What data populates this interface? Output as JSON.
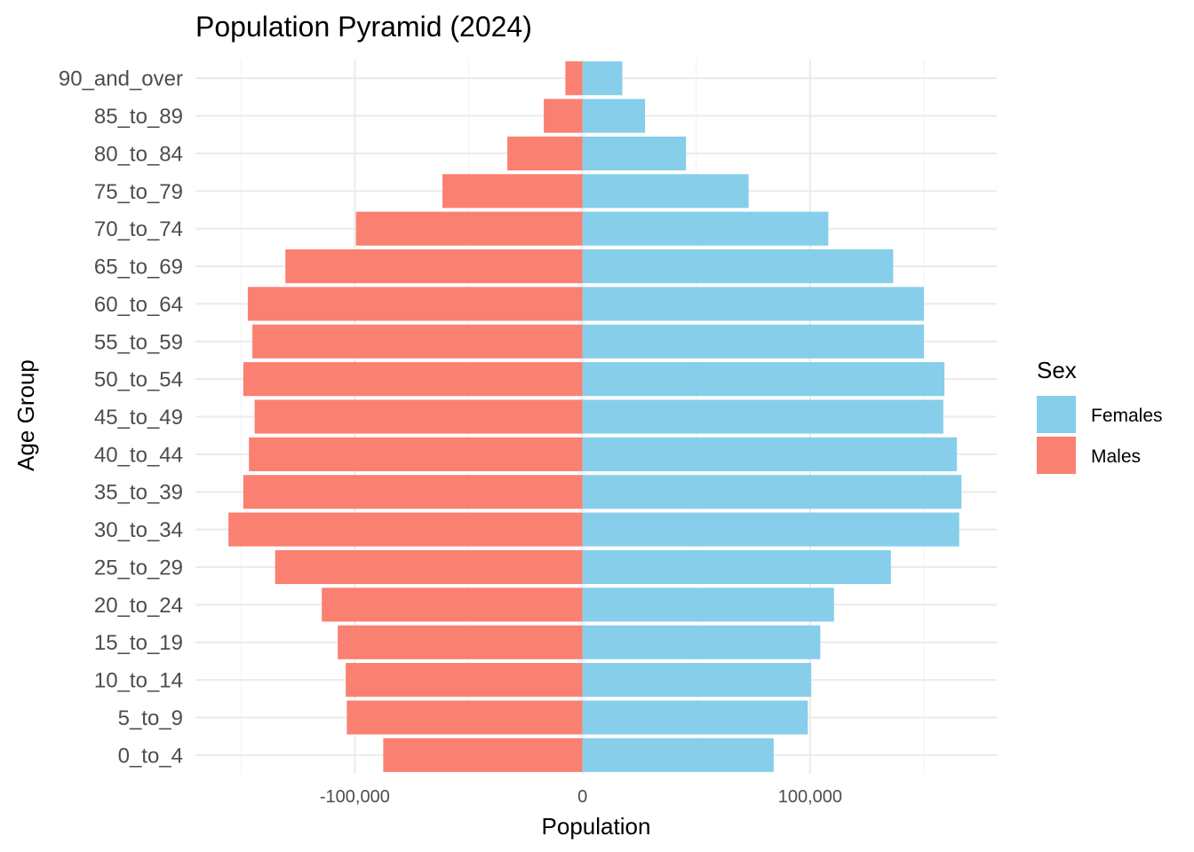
{
  "chart_data": {
    "type": "bar",
    "orientation": "horizontal",
    "title": "Population Pyramid (2024)",
    "xlabel": "Population",
    "ylabel": "Age Group",
    "xlim": [
      -170000,
      182000
    ],
    "x_tick_values": [
      -100000,
      0,
      100000
    ],
    "x_tick_labels": [
      "-100,000",
      "0",
      "100,000"
    ],
    "grid": true,
    "legend": {
      "title": "Sex",
      "position": "right"
    },
    "categories": [
      "0_to_4",
      "5_to_9",
      "10_to_14",
      "15_to_19",
      "20_to_24",
      "25_to_29",
      "30_to_34",
      "35_to_39",
      "40_to_44",
      "45_to_49",
      "50_to_54",
      "55_to_59",
      "60_to_64",
      "65_to_69",
      "70_to_74",
      "75_to_79",
      "80_to_84",
      "85_to_89",
      "90_and_over"
    ],
    "series": [
      {
        "name": "Females",
        "color": "#87CEEB",
        "values": [
          84000,
          99000,
          100500,
          104500,
          110500,
          135500,
          165500,
          166500,
          164500,
          158500,
          159000,
          150000,
          150000,
          136500,
          108000,
          73000,
          45500,
          27500,
          17500
        ]
      },
      {
        "name": "Males",
        "color": "#FA8072",
        "values": [
          -87500,
          -103500,
          -104000,
          -107500,
          -114500,
          -135000,
          -155500,
          -149000,
          -146500,
          -144000,
          -149000,
          -145000,
          -147000,
          -130500,
          -99500,
          -61500,
          -33000,
          -17000,
          -7500
        ]
      }
    ]
  }
}
